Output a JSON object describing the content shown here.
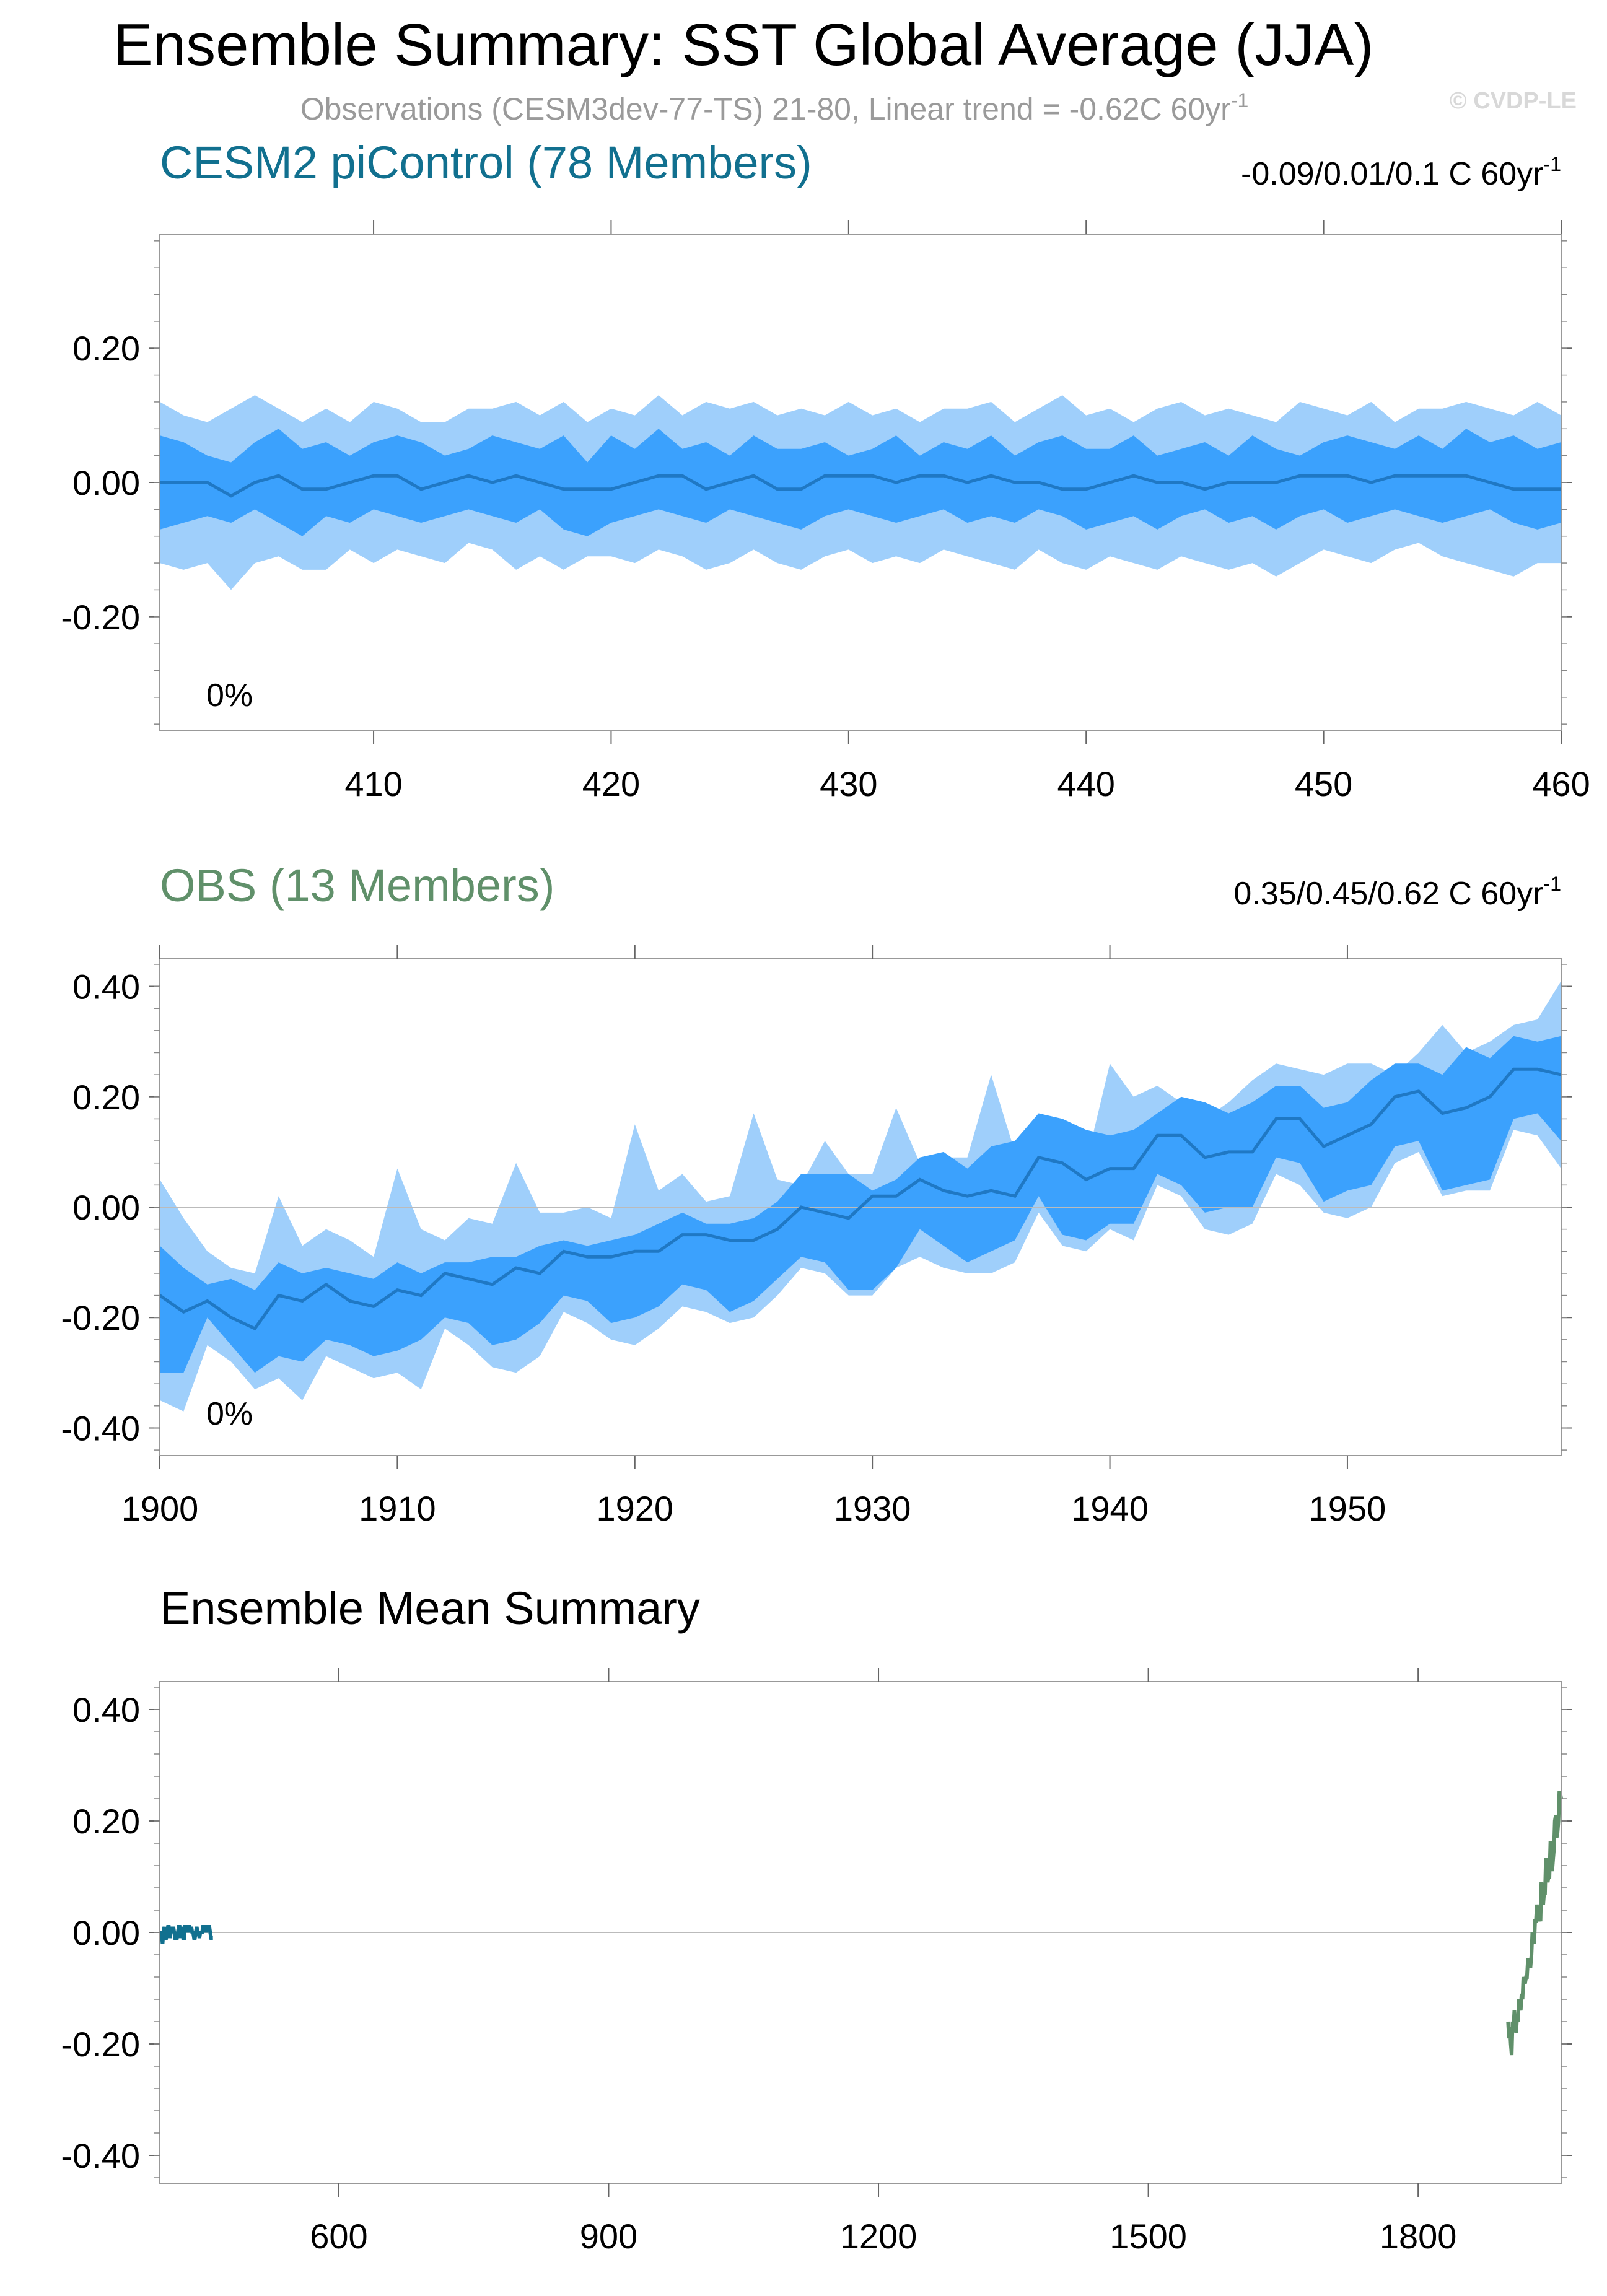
{
  "title": "Ensemble Summary: SST Global Average (JJA)",
  "subtitle": "Observations (CESM3dev-77-TS) 21-80, Linear trend = -0.62C 60yr",
  "subtitle_sup": "-1",
  "watermark": "© CVDP-LE",
  "colors": {
    "outer_band": "#9fcffb",
    "inner_band": "#3ba1fd",
    "median_line": "#1f78c4",
    "cesm": "#11708f",
    "obs": "#60906a",
    "axis": "#888888"
  },
  "chart_data": [
    {
      "type": "area",
      "title": "CESM2 piControl (78 Members)",
      "title_color": "#11708f",
      "trend_label": "-0.09/0.01/0.1 C 60yr",
      "trend_sup": "-1",
      "percent_label": "0%",
      "xlim": [
        401,
        460
      ],
      "ylim": [
        -0.37,
        0.37
      ],
      "xticks": [
        410,
        420,
        430,
        440,
        450,
        460
      ],
      "yticks": [
        -0.2,
        0.0,
        0.2
      ],
      "ytick_labels": [
        "-0.20",
        "0.00",
        "0.20"
      ],
      "zero_line": false,
      "x_start": 401,
      "series": [
        {
          "name": "outer-upper",
          "values": [
            0.12,
            0.1,
            0.09,
            0.11,
            0.13,
            0.11,
            0.09,
            0.11,
            0.09,
            0.12,
            0.11,
            0.09,
            0.09,
            0.11,
            0.11,
            0.12,
            0.1,
            0.12,
            0.09,
            0.11,
            0.1,
            0.13,
            0.1,
            0.12,
            0.11,
            0.12,
            0.1,
            0.11,
            0.1,
            0.12,
            0.1,
            0.11,
            0.09,
            0.11,
            0.11,
            0.12,
            0.09,
            0.11,
            0.13,
            0.1,
            0.11,
            0.09,
            0.11,
            0.12,
            0.1,
            0.11,
            0.1,
            0.09,
            0.12,
            0.11,
            0.1,
            0.12,
            0.09,
            0.11,
            0.11,
            0.12,
            0.11,
            0.1,
            0.12,
            0.1
          ]
        },
        {
          "name": "inner-upper",
          "values": [
            0.07,
            0.06,
            0.04,
            0.03,
            0.06,
            0.08,
            0.05,
            0.06,
            0.04,
            0.06,
            0.07,
            0.06,
            0.04,
            0.05,
            0.07,
            0.06,
            0.05,
            0.07,
            0.03,
            0.07,
            0.05,
            0.08,
            0.05,
            0.06,
            0.04,
            0.07,
            0.05,
            0.05,
            0.06,
            0.04,
            0.05,
            0.07,
            0.04,
            0.06,
            0.05,
            0.07,
            0.04,
            0.06,
            0.07,
            0.05,
            0.05,
            0.07,
            0.04,
            0.05,
            0.06,
            0.04,
            0.07,
            0.05,
            0.04,
            0.06,
            0.07,
            0.06,
            0.05,
            0.07,
            0.05,
            0.08,
            0.06,
            0.07,
            0.05,
            0.06
          ]
        },
        {
          "name": "median",
          "values": [
            0.0,
            0.0,
            0.0,
            -0.02,
            0.0,
            0.01,
            -0.01,
            -0.01,
            0.0,
            0.01,
            0.01,
            -0.01,
            0.0,
            0.01,
            0.0,
            0.01,
            0.0,
            -0.01,
            -0.01,
            -0.01,
            0.0,
            0.01,
            0.01,
            -0.01,
            0.0,
            0.01,
            -0.01,
            -0.01,
            0.01,
            0.01,
            0.01,
            0.0,
            0.01,
            0.01,
            0.0,
            0.01,
            0.0,
            0.0,
            -0.01,
            -0.01,
            0.0,
            0.01,
            0.0,
            0.0,
            -0.01,
            0.0,
            0.0,
            0.0,
            0.01,
            0.01,
            0.01,
            0.0,
            0.01,
            0.01,
            0.01,
            0.01,
            0.0,
            -0.01,
            -0.01,
            -0.01
          ]
        },
        {
          "name": "inner-lower",
          "values": [
            -0.07,
            -0.06,
            -0.05,
            -0.06,
            -0.04,
            -0.06,
            -0.08,
            -0.05,
            -0.06,
            -0.04,
            -0.05,
            -0.06,
            -0.05,
            -0.04,
            -0.05,
            -0.06,
            -0.04,
            -0.07,
            -0.08,
            -0.06,
            -0.05,
            -0.04,
            -0.05,
            -0.06,
            -0.04,
            -0.05,
            -0.06,
            -0.07,
            -0.05,
            -0.04,
            -0.05,
            -0.06,
            -0.05,
            -0.04,
            -0.06,
            -0.05,
            -0.06,
            -0.04,
            -0.05,
            -0.07,
            -0.06,
            -0.05,
            -0.07,
            -0.05,
            -0.04,
            -0.06,
            -0.05,
            -0.07,
            -0.05,
            -0.04,
            -0.06,
            -0.05,
            -0.04,
            -0.05,
            -0.06,
            -0.05,
            -0.04,
            -0.06,
            -0.07,
            -0.06
          ]
        },
        {
          "name": "outer-lower",
          "values": [
            -0.12,
            -0.13,
            -0.12,
            -0.16,
            -0.12,
            -0.11,
            -0.13,
            -0.13,
            -0.1,
            -0.12,
            -0.1,
            -0.11,
            -0.12,
            -0.09,
            -0.1,
            -0.13,
            -0.11,
            -0.13,
            -0.11,
            -0.11,
            -0.12,
            -0.1,
            -0.11,
            -0.13,
            -0.12,
            -0.1,
            -0.12,
            -0.13,
            -0.11,
            -0.1,
            -0.12,
            -0.11,
            -0.12,
            -0.1,
            -0.11,
            -0.12,
            -0.13,
            -0.1,
            -0.12,
            -0.13,
            -0.11,
            -0.12,
            -0.13,
            -0.11,
            -0.12,
            -0.13,
            -0.12,
            -0.14,
            -0.12,
            -0.1,
            -0.11,
            -0.12,
            -0.1,
            -0.09,
            -0.11,
            -0.12,
            -0.13,
            -0.14,
            -0.12,
            -0.12
          ]
        }
      ]
    },
    {
      "type": "area",
      "title": "OBS (13 Members)",
      "title_color": "#60906a",
      "trend_label": "0.35/0.45/0.62 C 60yr",
      "trend_sup": "-1",
      "percent_label": "0%",
      "xlim": [
        1900,
        1959
      ],
      "ylim": [
        -0.45,
        0.45
      ],
      "xticks": [
        1900,
        1910,
        1920,
        1930,
        1940,
        1950
      ],
      "yticks": [
        -0.4,
        -0.2,
        0.0,
        0.2,
        0.4
      ],
      "ytick_labels": [
        "-0.40",
        "-0.20",
        "0.00",
        "0.20",
        "0.40"
      ],
      "zero_line": true,
      "x_start": 1900,
      "series": [
        {
          "name": "outer-upper",
          "values": [
            0.05,
            -0.02,
            -0.08,
            -0.11,
            -0.12,
            0.02,
            -0.07,
            -0.04,
            -0.06,
            -0.09,
            0.07,
            -0.04,
            -0.06,
            -0.02,
            -0.03,
            0.08,
            -0.01,
            -0.01,
            0.0,
            -0.02,
            0.15,
            0.03,
            0.06,
            0.01,
            0.02,
            0.17,
            0.05,
            0.04,
            0.12,
            0.06,
            0.06,
            0.18,
            0.08,
            0.09,
            0.09,
            0.24,
            0.1,
            0.1,
            0.14,
            0.08,
            0.26,
            0.2,
            0.22,
            0.19,
            0.16,
            0.19,
            0.23,
            0.26,
            0.25,
            0.24,
            0.26,
            0.26,
            0.24,
            0.28,
            0.33,
            0.28,
            0.3,
            0.33,
            0.34,
            0.41
          ]
        },
        {
          "name": "inner-upper",
          "values": [
            -0.07,
            -0.11,
            -0.14,
            -0.13,
            -0.15,
            -0.1,
            -0.12,
            -0.11,
            -0.12,
            -0.13,
            -0.1,
            -0.12,
            -0.1,
            -0.1,
            -0.09,
            -0.09,
            -0.07,
            -0.06,
            -0.07,
            -0.06,
            -0.05,
            -0.03,
            -0.01,
            -0.03,
            -0.03,
            -0.02,
            0.01,
            0.06,
            0.06,
            0.06,
            0.03,
            0.05,
            0.09,
            0.1,
            0.07,
            0.11,
            0.12,
            0.17,
            0.16,
            0.14,
            0.13,
            0.14,
            0.17,
            0.2,
            0.19,
            0.17,
            0.19,
            0.22,
            0.22,
            0.18,
            0.19,
            0.23,
            0.26,
            0.26,
            0.24,
            0.29,
            0.27,
            0.31,
            0.3,
            0.31
          ]
        },
        {
          "name": "median",
          "values": [
            -0.16,
            -0.19,
            -0.17,
            -0.2,
            -0.22,
            -0.16,
            -0.17,
            -0.14,
            -0.17,
            -0.18,
            -0.15,
            -0.16,
            -0.12,
            -0.13,
            -0.14,
            -0.11,
            -0.12,
            -0.08,
            -0.09,
            -0.09,
            -0.08,
            -0.08,
            -0.05,
            -0.05,
            -0.06,
            -0.06,
            -0.04,
            0.0,
            -0.01,
            -0.02,
            0.02,
            0.02,
            0.05,
            0.03,
            0.02,
            0.03,
            0.02,
            0.09,
            0.08,
            0.05,
            0.07,
            0.07,
            0.13,
            0.13,
            0.09,
            0.1,
            0.1,
            0.16,
            0.16,
            0.11,
            0.13,
            0.15,
            0.2,
            0.21,
            0.17,
            0.18,
            0.2,
            0.25,
            0.25,
            0.24
          ]
        },
        {
          "name": "inner-lower",
          "values": [
            -0.3,
            -0.3,
            -0.2,
            -0.25,
            -0.3,
            -0.27,
            -0.28,
            -0.24,
            -0.25,
            -0.27,
            -0.26,
            -0.24,
            -0.2,
            -0.21,
            -0.25,
            -0.24,
            -0.21,
            -0.16,
            -0.17,
            -0.21,
            -0.2,
            -0.18,
            -0.14,
            -0.15,
            -0.19,
            -0.17,
            -0.13,
            -0.09,
            -0.1,
            -0.15,
            -0.15,
            -0.11,
            -0.04,
            -0.07,
            -0.1,
            -0.08,
            -0.06,
            0.02,
            -0.05,
            -0.06,
            -0.03,
            -0.03,
            0.06,
            0.04,
            -0.01,
            0.0,
            0.0,
            0.09,
            0.08,
            0.01,
            0.03,
            0.04,
            0.11,
            0.12,
            0.03,
            0.04,
            0.05,
            0.16,
            0.17,
            0.12
          ]
        },
        {
          "name": "outer-lower",
          "values": [
            -0.35,
            -0.37,
            -0.25,
            -0.28,
            -0.33,
            -0.31,
            -0.35,
            -0.27,
            -0.29,
            -0.31,
            -0.3,
            -0.33,
            -0.22,
            -0.25,
            -0.29,
            -0.3,
            -0.27,
            -0.19,
            -0.21,
            -0.24,
            -0.25,
            -0.22,
            -0.18,
            -0.19,
            -0.21,
            -0.2,
            -0.16,
            -0.11,
            -0.12,
            -0.16,
            -0.16,
            -0.11,
            -0.09,
            -0.11,
            -0.12,
            -0.12,
            -0.1,
            -0.01,
            -0.07,
            -0.08,
            -0.04,
            -0.06,
            0.04,
            0.02,
            -0.04,
            -0.05,
            -0.03,
            0.06,
            0.04,
            -0.01,
            -0.02,
            -0.0,
            0.08,
            0.1,
            0.02,
            0.03,
            0.03,
            0.14,
            0.13,
            0.07
          ]
        }
      ]
    },
    {
      "type": "line",
      "title": "Ensemble Mean Summary",
      "title_color": "#000000",
      "xlim": [
        401,
        1959
      ],
      "ylim": [
        -0.45,
        0.45
      ],
      "xticks": [
        600,
        900,
        1200,
        1500,
        1800
      ],
      "yticks": [
        -0.4,
        -0.2,
        0.0,
        0.2,
        0.4
      ],
      "ytick_labels": [
        "-0.40",
        "-0.20",
        "0.00",
        "0.20",
        "0.40"
      ],
      "zero_line": true,
      "series": [
        {
          "name": "CESM2 piControl",
          "color": "#11708f",
          "x_start": 401,
          "source_index": 0
        },
        {
          "name": "OBS",
          "color": "#60906a",
          "x_start": 1900,
          "source_index": 1
        }
      ]
    }
  ]
}
